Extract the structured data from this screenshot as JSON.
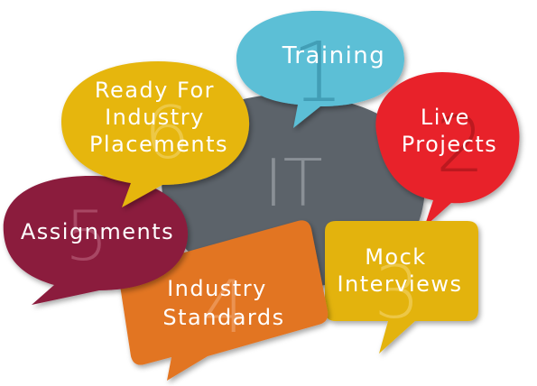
{
  "center": {
    "label": "IT",
    "color": "#5c646b"
  },
  "bubbles": [
    {
      "id": "training",
      "number": "1",
      "lines": [
        "Training"
      ],
      "color": "#5bbfd6"
    },
    {
      "id": "live-projects",
      "number": "2",
      "lines": [
        "Live",
        "Projects"
      ],
      "color": "#e8242a"
    },
    {
      "id": "mock-interviews",
      "number": "3",
      "lines": [
        "Mock",
        "Interviews"
      ],
      "color": "#e3b30e"
    },
    {
      "id": "industry-standards",
      "number": "4",
      "lines": [
        "Industry",
        "Standards"
      ],
      "color": "#e27424"
    },
    {
      "id": "assignments",
      "number": "5",
      "lines": [
        "Assignments"
      ],
      "color": "#8b1a3d"
    },
    {
      "id": "ready-for-industry",
      "number": "6",
      "lines": [
        "Ready For",
        "Industry",
        "Placements"
      ],
      "color": "#e6b60f"
    }
  ]
}
